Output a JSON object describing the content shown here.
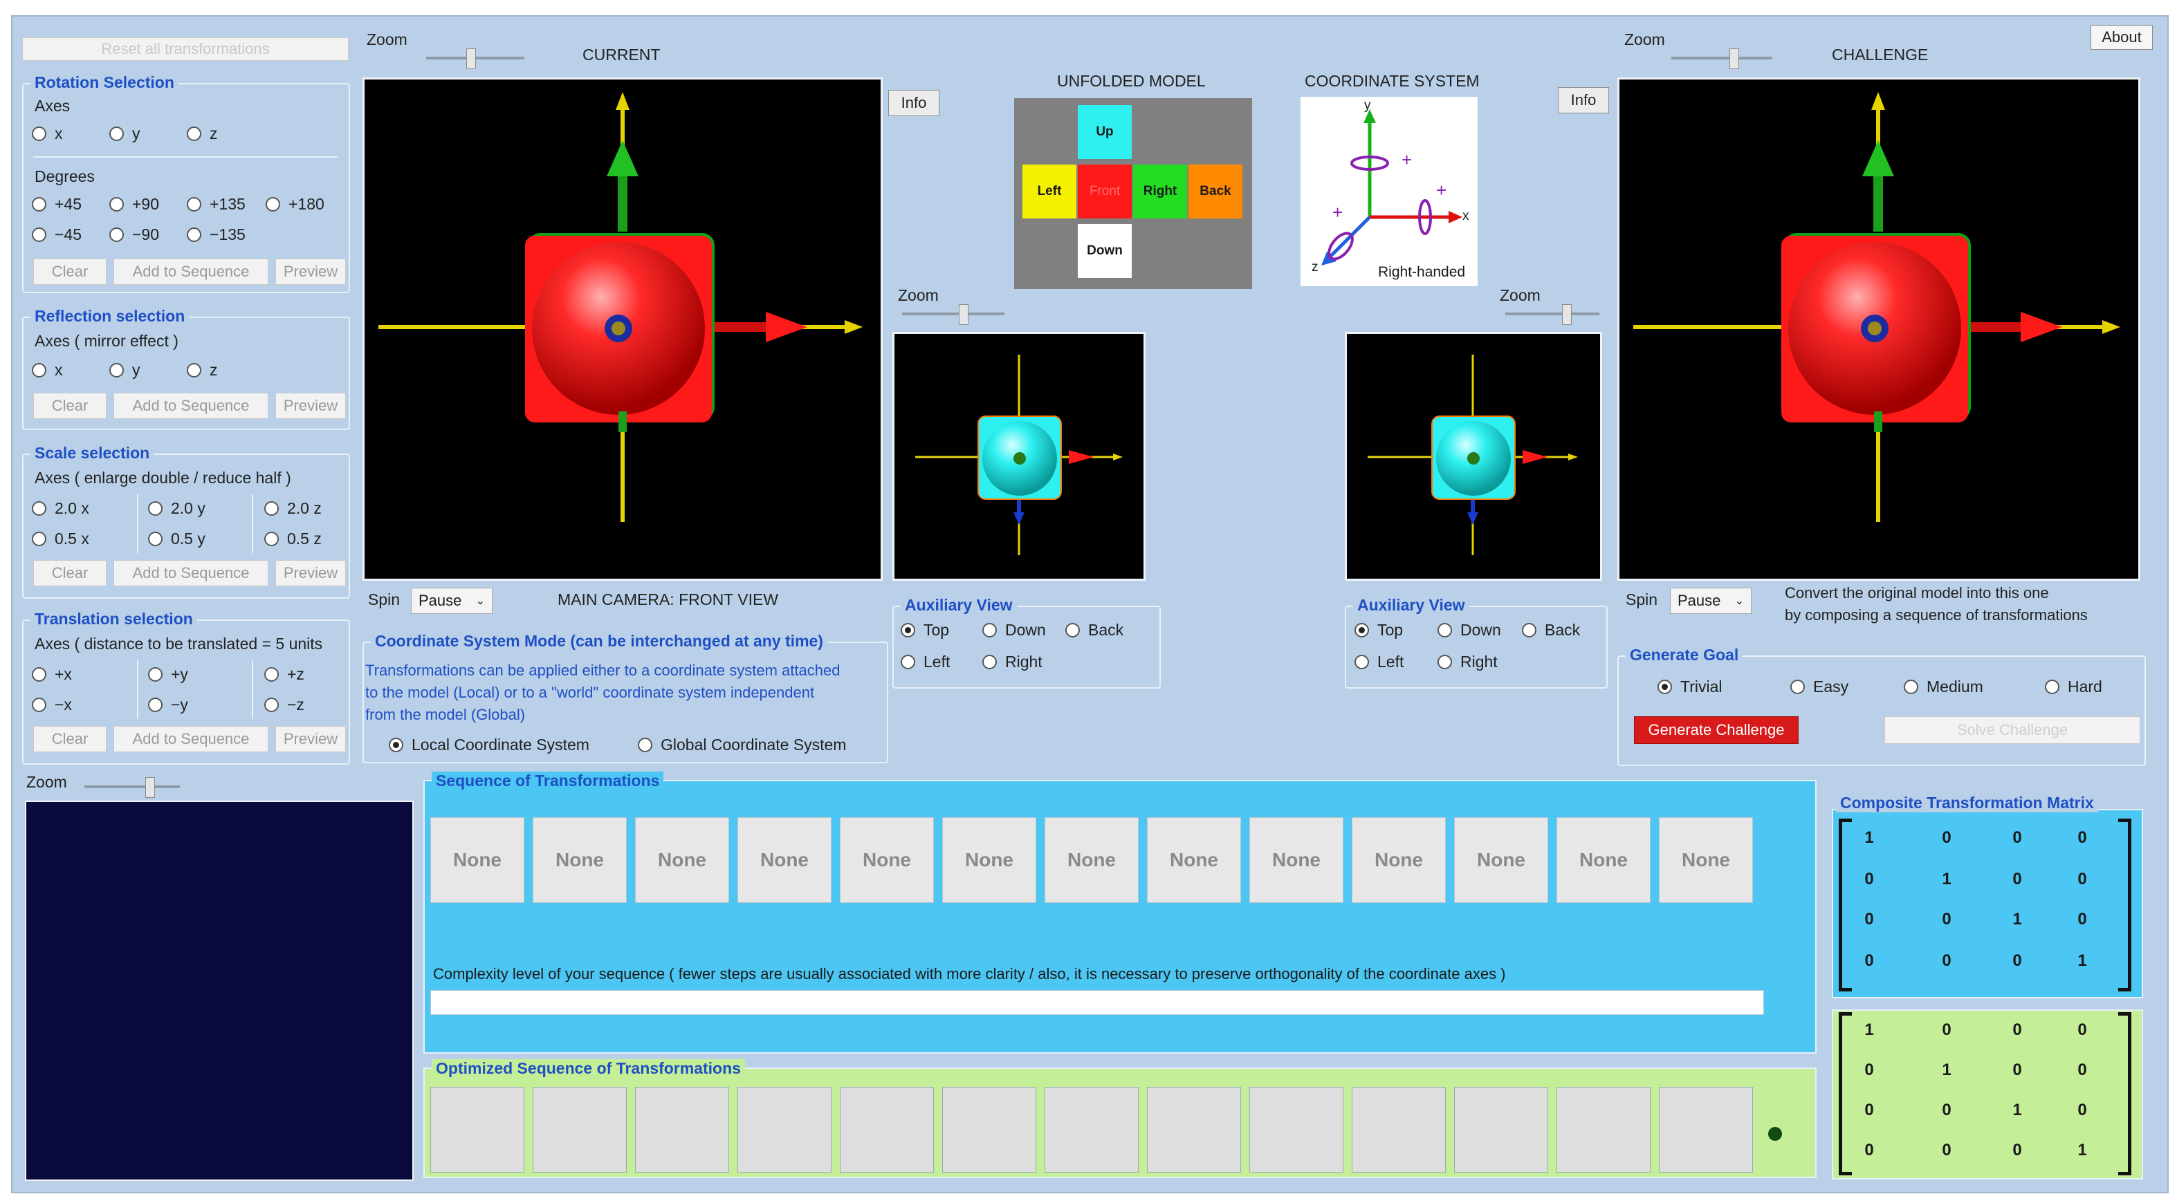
{
  "header": {
    "about_label": "About"
  },
  "left": {
    "reset_label": "Reset all transformations",
    "rotation": {
      "title": "Rotation Selection",
      "axes_label": "Axes",
      "axes": [
        "x",
        "y",
        "z"
      ],
      "degrees_label": "Degrees",
      "degrees_row1": [
        "+45",
        "+90",
        "+135",
        "+180"
      ],
      "degrees_row2": [
        "−45",
        "−90",
        "−135"
      ],
      "clear": "Clear",
      "add": "Add to Sequence",
      "preview": "Preview"
    },
    "reflection": {
      "title": "Reflection selection",
      "axes_label": "Axes   ( mirror effect )",
      "axes": [
        "x",
        "y",
        "z"
      ],
      "clear": "Clear",
      "add": "Add to Sequence",
      "preview": "Preview"
    },
    "scale": {
      "title": "Scale selection",
      "axes_label": "Axes   ( enlarge double / reduce half )",
      "row1": [
        "2.0 x",
        "2.0 y",
        "2.0 z"
      ],
      "row2": [
        "0.5 x",
        "0.5 y",
        "0.5 z"
      ],
      "clear": "Clear",
      "add": "Add to Sequence",
      "preview": "Preview"
    },
    "translation": {
      "title": "Translation selection",
      "axes_label": "Axes  ( distance to be translated = 5 units",
      "row1": [
        "+x",
        "+y",
        "+z"
      ],
      "row2": [
        "−x",
        "−y",
        "−z"
      ],
      "clear": "Clear",
      "add": "Add to Sequence",
      "preview": "Preview"
    }
  },
  "current": {
    "zoom_label": "Zoom",
    "title": "CURRENT",
    "spin_label": "Spin",
    "spin_value": "Pause",
    "camera_label": "MAIN CAMERA: FRONT VIEW"
  },
  "middle": {
    "info_label": "Info",
    "unfolded_title": "UNFOLDED MODEL",
    "faces": {
      "up": "Up",
      "left": "Left",
      "front": "Front",
      "right": "Right",
      "back": "Back",
      "down": "Down"
    },
    "coord_title": "COORDINATE SYSTEM",
    "coord_caption": "Right-handed",
    "axis_x": "x",
    "axis_y": "y",
    "axis_z": "z",
    "aux_zoom_label": "Zoom",
    "aux_title": "Auxiliary View",
    "aux_options_row1": [
      "Top",
      "Down",
      "Back"
    ],
    "aux_options_row2": [
      "Left",
      "Right"
    ]
  },
  "coord_mode": {
    "title": "Coordinate System Mode    (can be interchanged at any time)",
    "description_lines": [
      "Transformations can be applied either to a coordinate system attached",
      "to the model (Local) or to a \"world\" coordinate system independent",
      "from the model (Global)"
    ],
    "local_label": "Local Coordinate System",
    "global_label": "Global Coordinate System"
  },
  "challenge": {
    "zoom_label": "Zoom",
    "title": "CHALLENGE",
    "info_label": "Info",
    "spin_label": "Spin",
    "spin_value": "Pause",
    "instruction_lines": [
      "Convert the original model into this one",
      "by composing a sequence of transformations"
    ],
    "goal_title": "Generate Goal",
    "goal_options": [
      "Trivial",
      "Easy",
      "Medium",
      "Hard"
    ],
    "generate_label": "Generate Challenge",
    "solve_label": "Solve Challenge"
  },
  "bottom": {
    "zoom_label": "Zoom",
    "sequence_title": "Sequence of Transformations",
    "sequence_cells": [
      "None",
      "None",
      "None",
      "None",
      "None",
      "None",
      "None",
      "None",
      "None",
      "None",
      "None",
      "None",
      "None"
    ],
    "complexity_text": "Complexity level of your sequence    ( fewer steps are usually associated with more clarity / also, it is necessary to preserve orthogonality of the coordinate axes )",
    "optimized_title": "Optimized Sequence of Transformations",
    "matrix_title": "Composite Transformation Matrix",
    "matrix_rows": [
      [
        "1",
        "0",
        "0",
        "0"
      ],
      [
        "0",
        "1",
        "0",
        "0"
      ],
      [
        "0",
        "0",
        "1",
        "0"
      ],
      [
        "0",
        "0",
        "0",
        "1"
      ]
    ],
    "matrix2_rows": [
      [
        "1",
        "0",
        "0",
        "0"
      ],
      [
        "0",
        "1",
        "0",
        "0"
      ],
      [
        "0",
        "0",
        "1",
        "0"
      ],
      [
        "0",
        "0",
        "0",
        "1"
      ]
    ]
  },
  "colors": {
    "panel_bg": "#b9d0e8",
    "group_title": "#1f4fc4",
    "sequence_bg": "#4cc6f2",
    "optimized_bg": "#c4ef98",
    "generate_button": "#d91a1a",
    "cube_red": "#ff1a1a",
    "cube_cyan": "#2ff0f0"
  }
}
